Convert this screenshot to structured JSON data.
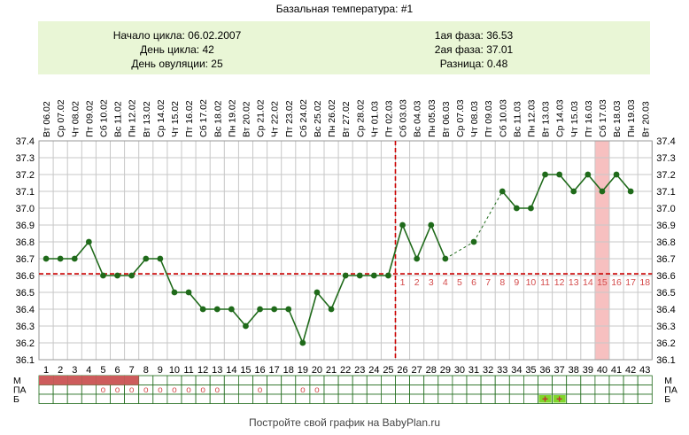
{
  "title": "Базальная температура: #1",
  "info": {
    "left": [
      "Начало цикла: 06.02.2007",
      "День цикла: 42",
      "День овуляции: 25"
    ],
    "right": [
      "1ая фаза: 36.53",
      "2ая фаза: 37.01",
      "Разница: 0.48"
    ]
  },
  "footer": "Постройте свой график на BabyPlan.ru",
  "colors": {
    "line": "#1f6a1a",
    "coverline": "#cc0000",
    "grid": "#c7c7c7",
    "period": "#cd5c5c",
    "highlight": "#f7c0c0",
    "phase_numbers": "#d44c4c",
    "info_bg": "#e9f6d6",
    "plus": "#7fd62a"
  },
  "chart_data": {
    "type": "line",
    "xlabel": "",
    "ylabel": "",
    "ylim": [
      36.1,
      37.4
    ],
    "yticks": [
      "36.1",
      "36.2",
      "36.3",
      "36.4",
      "36.5",
      "36.6",
      "36.7",
      "36.8",
      "36.9",
      "37.0",
      "37.1",
      "37.2",
      "37.3",
      "37.4"
    ],
    "days": [
      "1",
      "2",
      "3",
      "4",
      "5",
      "6",
      "7",
      "8",
      "9",
      "10",
      "11",
      "12",
      "13",
      "14",
      "15",
      "16",
      "17",
      "18",
      "19",
      "20",
      "21",
      "22",
      "23",
      "24",
      "25",
      "26",
      "27",
      "28",
      "29",
      "30",
      "31",
      "32",
      "33",
      "34",
      "35",
      "36",
      "37",
      "38",
      "39",
      "40",
      "41",
      "42",
      "43"
    ],
    "dates": [
      "Вт 06.02",
      "Ср 07.02",
      "Чт 08.02",
      "Пт 09.02",
      "Сб 10.02",
      "Вс 11.02",
      "Пн 12.02",
      "Вт 13.02",
      "Ср 14.02",
      "Чт 15.02",
      "Пт 16.02",
      "Сб 17.02",
      "Вс 18.02",
      "Пн 19.02",
      "Вт 20.02",
      "Ср 21.02",
      "Чт 22.02",
      "Пт 23.02",
      "Сб 24.02",
      "Вс 25.02",
      "Пн 26.02",
      "Вт 27.02",
      "Ср 28.02",
      "Чт 01.03",
      "Пт 02.03",
      "Сб 03.03",
      "Вс 04.03",
      "Пн 05.03",
      "Вт 06.03",
      "Ср 07.03",
      "Чт 08.03",
      "Пт 09.03",
      "Сб 10.03",
      "Вс 11.03",
      "Пн 12.03",
      "Вт 13.03",
      "Ср 14.03",
      "Чт 15.03",
      "Пт 16.03",
      "Сб 17.03",
      "Вс 18.03",
      "Пн 19.03",
      "Вт 20.03"
    ],
    "temperatures": [
      36.7,
      36.7,
      36.7,
      36.8,
      36.6,
      36.6,
      36.6,
      36.7,
      36.7,
      36.5,
      36.5,
      36.4,
      36.4,
      36.4,
      36.3,
      36.4,
      36.4,
      36.4,
      36.2,
      36.5,
      36.4,
      36.6,
      36.6,
      36.6,
      36.6,
      36.9,
      36.7,
      36.9,
      36.7,
      null,
      36.8,
      null,
      37.1,
      37.0,
      37.0,
      37.2,
      37.2,
      37.1,
      37.2,
      37.1,
      37.2,
      37.1,
      null
    ],
    "coverline": 36.61,
    "ovulation_day": 25,
    "highlight_day": 40,
    "luteal_days": [
      "1",
      "2",
      "3",
      "4",
      "5",
      "6",
      "7",
      "8",
      "9",
      "10",
      "11",
      "12",
      "13",
      "14",
      "15",
      "16",
      "17",
      "18"
    ],
    "rows": {
      "labels": [
        "М",
        "ПА",
        "Б"
      ],
      "menstruation_days": [
        1,
        2,
        3,
        4,
        5,
        6,
        7
      ],
      "pa_days": [
        5,
        6,
        7,
        8,
        9,
        10,
        11,
        12,
        13,
        16,
        19,
        20
      ],
      "pa_mark": "о",
      "b_days": [
        36,
        37
      ],
      "b_mark": "+"
    }
  }
}
